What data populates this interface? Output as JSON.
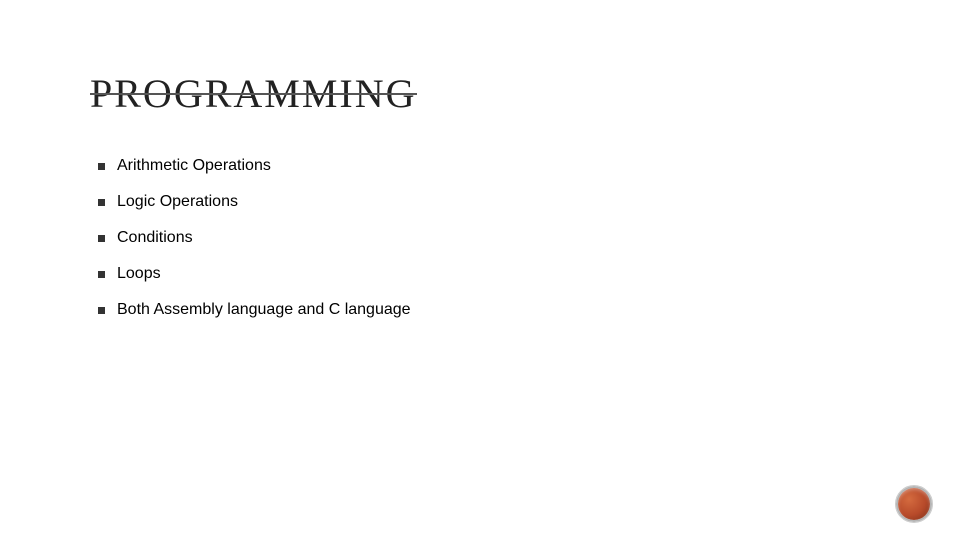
{
  "slide": {
    "title": "PROGRAMMING",
    "title_color": "#222222",
    "title_fontsize": 40,
    "title_letter_spacing": 2,
    "title_has_strikethrough": true,
    "strikethrough_color": "#555555",
    "bullets": [
      {
        "text": "Arithmetic Operations"
      },
      {
        "text": "Logic Operations"
      },
      {
        "text": "Conditions"
      },
      {
        "text": "Loops"
      },
      {
        "text": "Both Assembly language and C language"
      }
    ],
    "bullet_marker_color": "#333333",
    "bullet_text_color": "#000000",
    "bullet_fontsize": 16,
    "background_color": "#ffffff",
    "decor_circle": {
      "outer_gradient_start": "#d46b3f",
      "outer_gradient_mid": "#b74a2a",
      "outer_gradient_end": "#7a2e18",
      "ring_color": "#b5b5b5",
      "size": 32
    }
  }
}
